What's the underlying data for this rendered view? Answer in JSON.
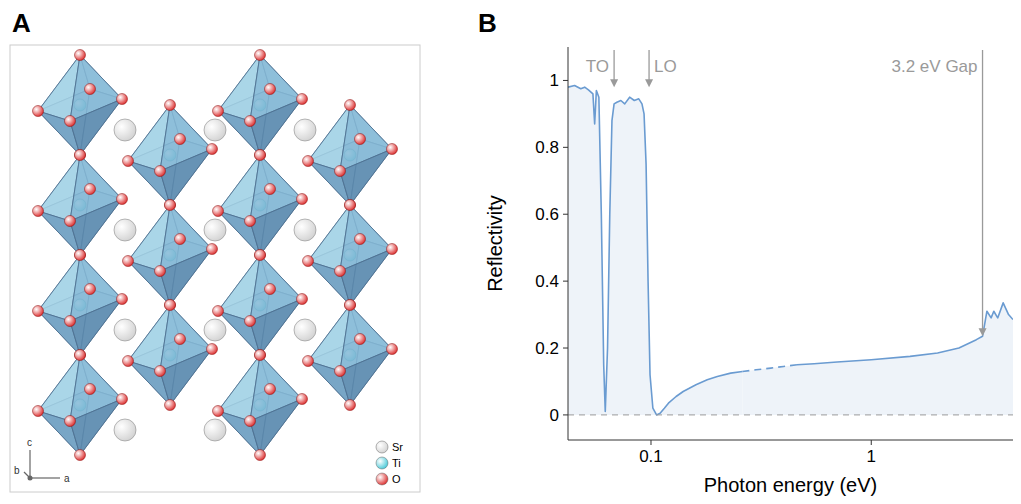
{
  "diagram": {
    "label": "A",
    "legend": [
      {
        "label": "Sr",
        "color": "#cfcfcf"
      },
      {
        "label": "Ti",
        "color": "#38c4d4"
      },
      {
        "label": "O",
        "color": "#d91c1c"
      }
    ],
    "axes_labels": [
      "c",
      "b",
      "a"
    ]
  },
  "chart_data": {
    "type": "line",
    "panel_label": "B",
    "xlabel": "Photon energy (eV)",
    "ylabel": "Reflectivity",
    "log": "x",
    "grid": false,
    "xlim": [
      0.042,
      4.4
    ],
    "xticks": [
      0.1,
      1
    ],
    "ylim": [
      -0.075,
      1.1
    ],
    "yticks": [
      0,
      0.2,
      0.4,
      0.6,
      0.8,
      1
    ],
    "x": [
      0.042,
      0.045,
      0.048,
      0.05,
      0.052,
      0.0545,
      0.0555,
      0.0565,
      0.058,
      0.0595,
      0.061,
      0.062,
      0.0635,
      0.065,
      0.0665,
      0.068,
      0.07,
      0.073,
      0.076,
      0.08,
      0.084,
      0.088,
      0.091,
      0.093,
      0.095,
      0.097,
      0.099,
      0.102,
      0.106,
      0.11,
      0.115,
      0.12,
      0.13,
      0.14,
      0.16,
      0.18,
      0.2,
      0.23,
      0.26,
      0.3,
      0.35,
      0.4,
      0.46,
      0.55,
      0.7,
      1,
      1.5,
      2,
      2.5,
      3,
      3.2,
      3.35,
      3.5,
      3.6,
      3.75,
      3.97,
      4.2,
      4.4
    ],
    "series": [
      {
        "color": "#6a9bd1",
        "line_style": "solid",
        "values": [
          0.98,
          0.985,
          0.975,
          0.98,
          0.972,
          0.96,
          0.87,
          0.97,
          0.95,
          0.6,
          0.15,
          0.01,
          0.2,
          0.6,
          0.88,
          0.93,
          0.935,
          0.94,
          0.93,
          0.95,
          0.94,
          0.945,
          0.93,
          0.9,
          0.75,
          0.4,
          0.12,
          0.02,
          0,
          0.005,
          0.02,
          0.035,
          0.055,
          0.07,
          0.09,
          0.105,
          0.115,
          0.125,
          0.13,
          null,
          null,
          null,
          0.15,
          0.153,
          0.158,
          0.165,
          0.175,
          0.185,
          0.2,
          0.225,
          0.235,
          0.31,
          0.29,
          0.31,
          0.29,
          0.335,
          0.3,
          0.285
        ]
      },
      {
        "color": "#6a9bd1",
        "line_style": "dashed",
        "values": [
          null,
          null,
          null,
          null,
          null,
          null,
          null,
          null,
          null,
          null,
          null,
          null,
          null,
          null,
          null,
          null,
          null,
          null,
          null,
          null,
          null,
          null,
          null,
          null,
          null,
          null,
          null,
          null,
          null,
          null,
          null,
          null,
          null,
          null,
          null,
          null,
          null,
          null,
          0.13,
          0.135,
          0.14,
          0.145,
          0.15,
          null,
          null,
          null,
          null,
          null,
          null,
          null,
          null,
          null,
          null,
          null,
          null,
          null,
          null,
          null
        ]
      }
    ],
    "annotations": [
      {
        "text": "TO",
        "x": 0.068,
        "y": 0.98
      },
      {
        "text": "LO",
        "x": 0.098,
        "y": 0.98
      },
      {
        "text": "3.2 eV Gap",
        "x": 3.2,
        "y": 0.235
      }
    ]
  }
}
